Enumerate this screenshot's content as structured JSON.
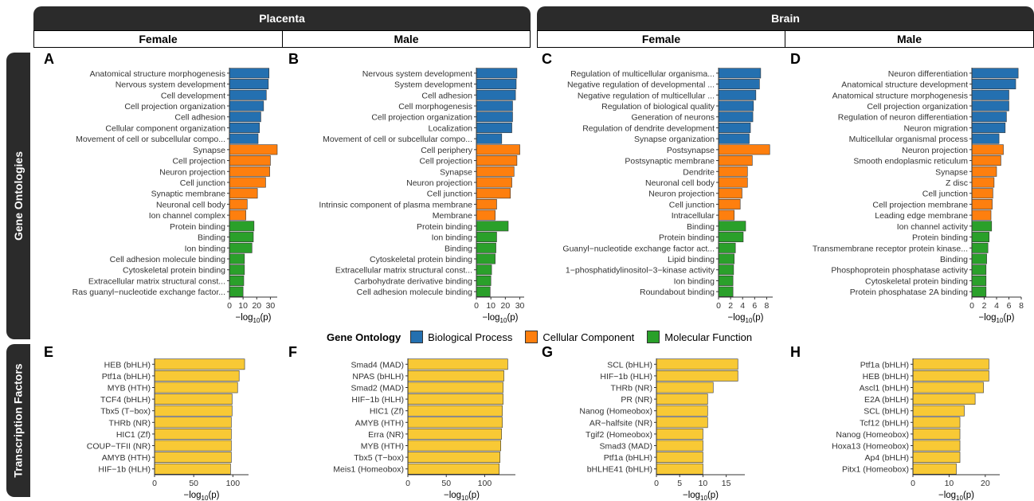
{
  "headers": {
    "top": [
      "Placenta",
      "Brain"
    ],
    "sub": [
      "Female",
      "Male",
      "Female",
      "Male"
    ],
    "side": [
      "Gene Ontologies",
      "Transcription Factors"
    ]
  },
  "legend": {
    "title": "Gene Ontology",
    "items": [
      {
        "label": "Biological Process",
        "color": "#2470b0"
      },
      {
        "label": "Cellular Component",
        "color": "#fe7f0e"
      },
      {
        "label": "Molecular Function",
        "color": "#2aa02a"
      }
    ]
  },
  "colors": {
    "bp": "#2470b0",
    "cc": "#fe7f0e",
    "mf": "#2aa02a",
    "tf": "#f8c935"
  },
  "chart_data": [
    {
      "panel": "A",
      "type": "bar",
      "orientation": "horizontal",
      "xlabel": "−log10(p)",
      "xlim": [
        0,
        35
      ],
      "xticks": [
        0,
        10,
        20,
        30
      ],
      "categories": [
        "Anatomical structure morphogenesis",
        "Nervous system development",
        "Cell development",
        "Cell projection organization",
        "Cell adhesion",
        "Cellular component organization",
        "Movement of cell or subcellular compo...",
        "Synapse",
        "Cell projection",
        "Neuron projection",
        "Cell junction",
        "Synaptic membrane",
        "Neuronal cell body",
        "Ion channel complex",
        "Protein binding",
        "Binding",
        "Ion binding",
        "Cell adhesion molecule binding",
        "Cytoskeletal protein binding",
        "Extracellular matrix structural const...",
        "Ras guanyl−nucleotide exchange factor..."
      ],
      "values": [
        29,
        28.5,
        27,
        25,
        23,
        22,
        21,
        35,
        30,
        29.5,
        26.5,
        20.5,
        13,
        12,
        18,
        17.5,
        16.5,
        11,
        11,
        10.5,
        10
      ],
      "groups": [
        "bp",
        "bp",
        "bp",
        "bp",
        "bp",
        "bp",
        "bp",
        "cc",
        "cc",
        "cc",
        "cc",
        "cc",
        "cc",
        "cc",
        "mf",
        "mf",
        "mf",
        "mf",
        "mf",
        "mf",
        "mf"
      ]
    },
    {
      "panel": "B",
      "type": "bar",
      "orientation": "horizontal",
      "xlabel": "−log10(p)",
      "xlim": [
        0,
        33
      ],
      "xticks": [
        0,
        10,
        20,
        30
      ],
      "categories": [
        "Nervous system development",
        "System development",
        "Cell adhesion",
        "Cell morphogenesis",
        "Cell projection organization",
        "Localization",
        "Movement of cell or subcellular compo...",
        "Cell periphery",
        "Cell projection",
        "Synapse",
        "Neuron projection",
        "Cell junction",
        "Intrinsic component of plasma membrane",
        "Membrane",
        "Protein binding",
        "Ion binding",
        "Binding",
        "Cytoskeletal protein binding",
        "Extracellular matrix structural const...",
        "Carbohydrate derivative binding",
        "Cell adhesion molecule binding"
      ],
      "values": [
        28,
        27.5,
        27,
        25,
        25,
        24.5,
        17.5,
        30,
        28,
        26,
        24.5,
        23.5,
        14,
        13,
        22,
        14,
        13.5,
        13,
        10.5,
        10,
        9.5
      ],
      "groups": [
        "bp",
        "bp",
        "bp",
        "bp",
        "bp",
        "bp",
        "bp",
        "cc",
        "cc",
        "cc",
        "cc",
        "cc",
        "cc",
        "cc",
        "mf",
        "mf",
        "mf",
        "mf",
        "mf",
        "mf",
        "mf"
      ]
    },
    {
      "panel": "C",
      "type": "bar",
      "orientation": "horizontal",
      "xlabel": "−log10(p)",
      "xlim": [
        0,
        9
      ],
      "xticks": [
        0,
        2,
        4,
        6,
        8
      ],
      "categories": [
        "Regulation of multicellular organisma...",
        "Negative regulation of developmental ...",
        "Negative regulation of multicellular ...",
        "Regulation of biological quality",
        "Generation of neurons",
        "Regulation of dendrite development",
        "Synapse organization",
        "Postsynapse",
        "Postsynaptic membrane",
        "Dendrite",
        "Neuronal cell body",
        "Neuron projection",
        "Cell junction",
        "Intracellular",
        "Binding",
        "Protein binding",
        "Guanyl−nucleotide exchange factor act...",
        "Lipid binding",
        "1−phosphatidylinositol−3−kinase activity",
        "Ion binding",
        "Roundabout binding"
      ],
      "values": [
        7.0,
        6.8,
        6.2,
        5.8,
        5.7,
        5.3,
        5.1,
        8.5,
        5.6,
        4.8,
        4.8,
        3.9,
        3.6,
        2.6,
        4.5,
        4.1,
        2.8,
        2.6,
        2.5,
        2.4,
        2.4
      ],
      "groups": [
        "bp",
        "bp",
        "bp",
        "bp",
        "bp",
        "bp",
        "bp",
        "cc",
        "cc",
        "cc",
        "cc",
        "cc",
        "cc",
        "cc",
        "mf",
        "mf",
        "mf",
        "mf",
        "mf",
        "mf",
        "mf"
      ]
    },
    {
      "panel": "D",
      "type": "bar",
      "orientation": "horizontal",
      "xlabel": "−log10(p)",
      "xlim": [
        0,
        8
      ],
      "xticks": [
        0,
        2,
        4,
        6,
        8
      ],
      "categories": [
        "Neuron differentiation",
        "Anatomical structure development",
        "Anatomical structure morphogenesis",
        "Cell projection organization",
        "Regulation of neuron differentiation",
        "Neuron migration",
        "Multicellular organismal process",
        "Neuron projection",
        "Smooth endoplasmic reticulum",
        "Synapse",
        "Z disc",
        "Cell junction",
        "Cell projection membrane",
        "Leading edge membrane",
        "Ion channel activity",
        "Protein binding",
        "Transmembrane receptor protein kinase...",
        "Binding",
        "Phosphoprotein phosphatase activity",
        "Cytoskeletal protein binding",
        "Protein phosphatase 2A binding"
      ],
      "values": [
        7.5,
        7.1,
        6.0,
        6.0,
        5.6,
        5.4,
        4.4,
        5.1,
        4.7,
        4.0,
        3.6,
        3.4,
        3.3,
        3.1,
        3.2,
        2.8,
        2.6,
        2.4,
        2.3,
        2.3,
        2.3
      ],
      "groups": [
        "bp",
        "bp",
        "bp",
        "bp",
        "bp",
        "bp",
        "bp",
        "cc",
        "cc",
        "cc",
        "cc",
        "cc",
        "cc",
        "cc",
        "mf",
        "mf",
        "mf",
        "mf",
        "mf",
        "mf",
        "mf"
      ]
    },
    {
      "panel": "E",
      "type": "bar",
      "orientation": "horizontal",
      "xlabel": "−log10(p)",
      "xlim": [
        0,
        120
      ],
      "xticks": [
        0,
        50,
        100
      ],
      "categories": [
        "HEB (bHLH)",
        "Ptf1a (bHLH)",
        "MYB (HTH)",
        "TCF4 (bHLH)",
        "Tbx5 (T−box)",
        "THRb (NR)",
        "HIC1 (Zf)",
        "COUP−TFII (NR)",
        "AMYB (HTH)",
        "HIF−1b (HLH)"
      ],
      "values": [
        115,
        108,
        106,
        99,
        99,
        98,
        98,
        98,
        98,
        97
      ]
    },
    {
      "panel": "F",
      "type": "bar",
      "orientation": "horizontal",
      "xlabel": "−log10(p)",
      "xlim": [
        0,
        140
      ],
      "xticks": [
        0,
        50,
        100
      ],
      "categories": [
        "Smad4 (MAD)",
        "NPAS (bHLH)",
        "Smad2 (MAD)",
        "HIF−1b (HLH)",
        "HIC1 (Zf)",
        "AMYB (HTH)",
        "Erra (NR)",
        "MYB (HTH)",
        "Tbx5 (T−box)",
        "Meis1 (Homeobox)"
      ],
      "values": [
        130,
        125,
        124,
        124,
        123,
        123,
        122,
        121,
        120,
        119
      ]
    },
    {
      "panel": "G",
      "type": "bar",
      "orientation": "horizontal",
      "xlabel": "−log10(p)",
      "xlim": [
        0,
        19
      ],
      "xticks": [
        0,
        5,
        10,
        15
      ],
      "categories": [
        "SCL (bHLH)",
        "HIF−1b (HLH)",
        "THRb (NR)",
        "PR (NR)",
        "Nanog (Homeobox)",
        "AR−halfsite (NR)",
        "Tgif2 (Homeobox)",
        "Smad3 (MAD)",
        "Ptf1a (bHLH)",
        "bHLHE41 (bHLH)"
      ],
      "values": [
        17.5,
        17.5,
        12.2,
        11,
        11,
        11,
        10,
        10,
        10,
        10
      ]
    },
    {
      "panel": "H",
      "type": "bar",
      "orientation": "horizontal",
      "xlabel": "−log10(p)",
      "xlim": [
        0,
        24
      ],
      "xticks": [
        0,
        10,
        20
      ],
      "categories": [
        "Ptf1a (bHLH)",
        "HEB (bHLH)",
        "Ascl1 (bHLH)",
        "E2A (bHLH)",
        "SCL (bHLH)",
        "Tcf12 (bHLH)",
        "Nanog (Homeobox)",
        "Hoxa13 (Homeobox)",
        "Ap4 (bHLH)",
        "Pitx1 (Homeobox)"
      ],
      "values": [
        21,
        21,
        19.5,
        17.2,
        14.2,
        13,
        13,
        13,
        13,
        12
      ]
    }
  ]
}
